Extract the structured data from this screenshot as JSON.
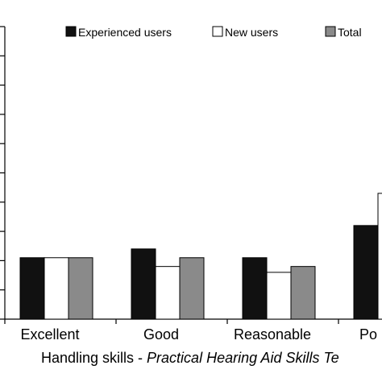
{
  "chart_data": {
    "type": "bar",
    "categories": [
      "Excellent",
      "Good",
      "Reasonable",
      "P"
    ],
    "category_display": [
      "Excellent",
      "Good",
      "Reasonable",
      "Po"
    ],
    "series": [
      {
        "name": "Experienced users",
        "color": "#111111",
        "values": [
          2.1,
          2.4,
          2.1,
          3.2
        ]
      },
      {
        "name": "New users",
        "color": "#ffffff",
        "values": [
          2.1,
          1.8,
          1.6,
          4.3
        ]
      },
      {
        "name": "Total",
        "color": "#8a8a8a",
        "values": [
          2.1,
          2.1,
          1.8,
          null
        ]
      }
    ],
    "xlabel_plain": "Handling skills - ",
    "xlabel_italic": "Practical Hearing Aid Skills Te",
    "ylim": [
      0,
      10
    ],
    "ytick_count": 11,
    "grid": false,
    "legend_position": "top"
  }
}
